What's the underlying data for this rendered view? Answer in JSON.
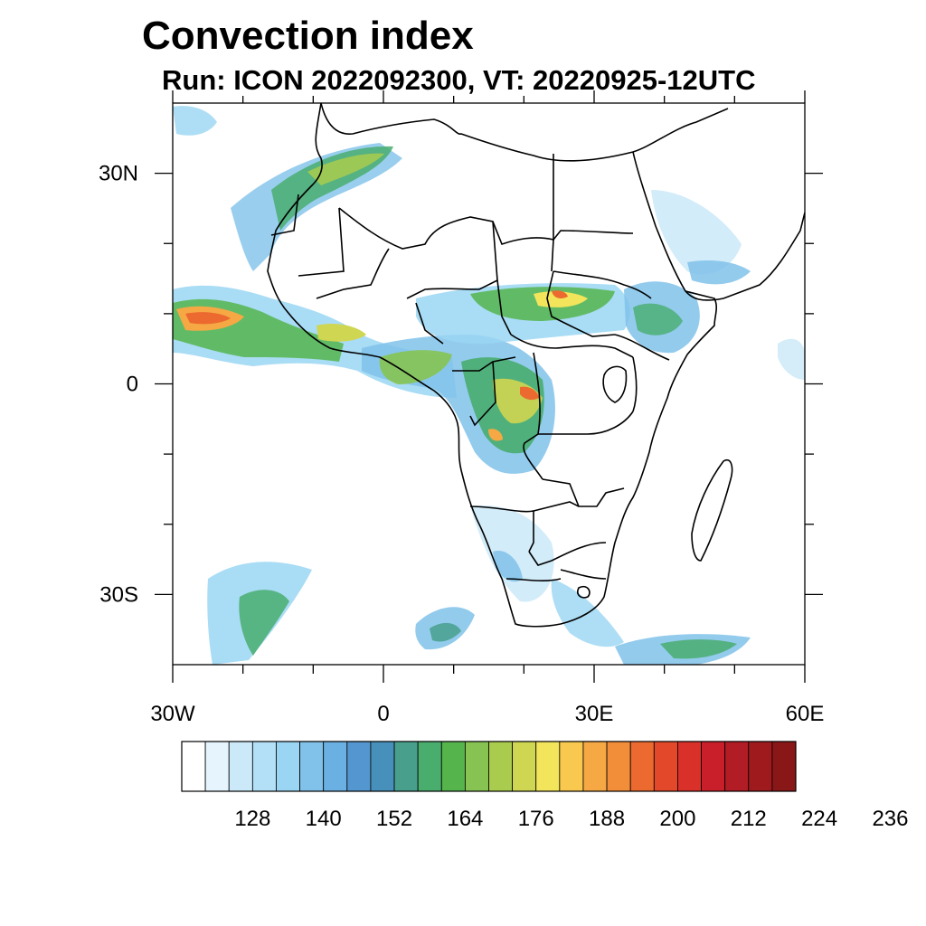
{
  "title": "Convection index",
  "subtitle": "Run: ICON 2022092300,  VT: 20220925-12UTC",
  "map": {
    "lon_range": [
      -30,
      60
    ],
    "lat_range": [
      -40,
      40
    ],
    "lon_ticks": [
      {
        "value": -30,
        "label": "30W"
      },
      {
        "value": 0,
        "label": "0"
      },
      {
        "value": 30,
        "label": "30E"
      },
      {
        "value": 60,
        "label": "60E"
      }
    ],
    "lat_ticks": [
      {
        "value": 30,
        "label": "30N"
      },
      {
        "value": 0,
        "label": "0"
      },
      {
        "value": -30,
        "label": "30S"
      }
    ],
    "minor_lon_ticks": [
      -20,
      -10,
      10,
      20,
      40,
      50
    ],
    "minor_lat_ticks": [
      20,
      10,
      -10,
      -20
    ]
  },
  "colorbar": {
    "colors": [
      "#ffffff",
      "#e6f5fd",
      "#cbe9f8",
      "#b3e0f7",
      "#9ad6f3",
      "#80c2ea",
      "#6bb0e2",
      "#5496cf",
      "#4790bc",
      "#48a08c",
      "#49ad6e",
      "#55b54c",
      "#86c352",
      "#a9cc4e",
      "#cfd651",
      "#f3e55b",
      "#f8c94e",
      "#f6a844",
      "#f28d3a",
      "#ec6a30",
      "#e3482a",
      "#d93129",
      "#c91f2a",
      "#b21c24",
      "#9e1a1d",
      "#8a1717"
    ],
    "labels": [
      {
        "boundary": 3,
        "text": "128"
      },
      {
        "boundary": 6,
        "text": "140"
      },
      {
        "boundary": 9,
        "text": "152"
      },
      {
        "boundary": 12,
        "text": "164"
      },
      {
        "boundary": 15,
        "text": "176"
      },
      {
        "boundary": 18,
        "text": "188"
      },
      {
        "boundary": 21,
        "text": "200"
      },
      {
        "boundary": 24,
        "text": "212"
      },
      {
        "boundary": 27,
        "text": "224"
      },
      {
        "boundary": 30,
        "text": "236"
      }
    ]
  }
}
